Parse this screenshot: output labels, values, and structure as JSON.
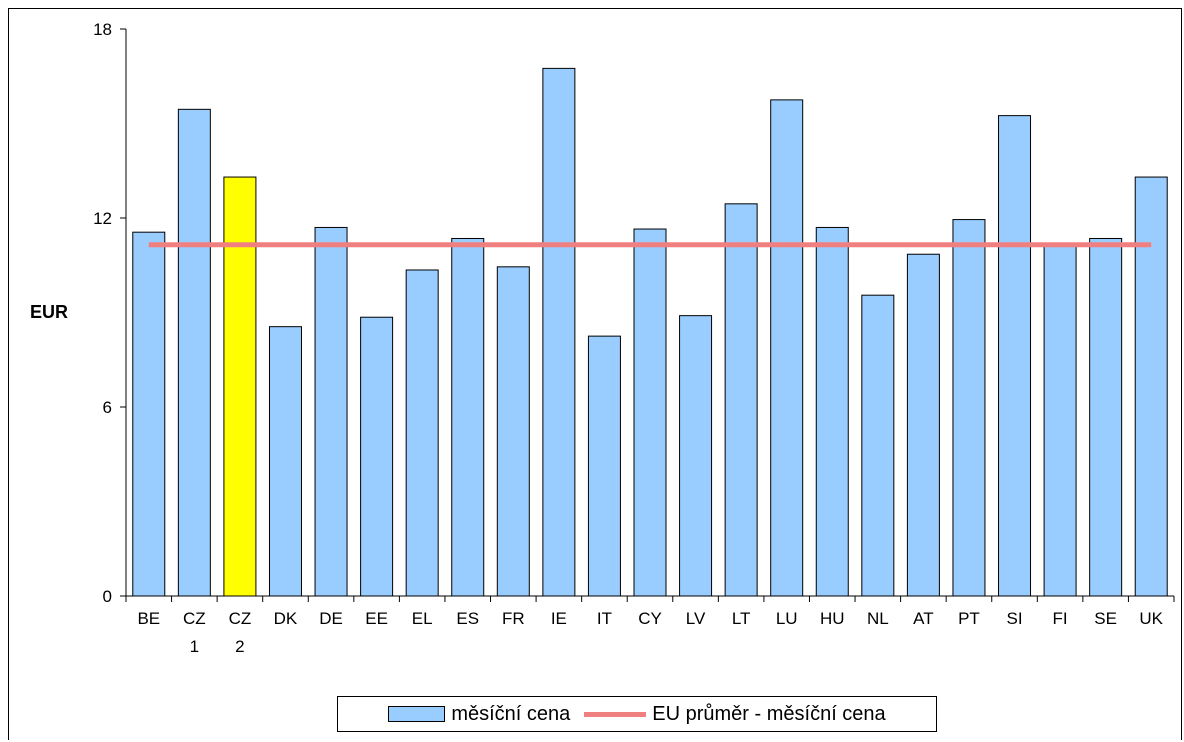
{
  "chart_data": {
    "type": "bar",
    "ylabel": "EUR",
    "ylim": [
      0,
      18
    ],
    "yticks": [
      0,
      6,
      12,
      18
    ],
    "categories": [
      [
        "BE"
      ],
      [
        "CZ",
        "1"
      ],
      [
        "CZ",
        "2"
      ],
      [
        "DK"
      ],
      [
        "DE"
      ],
      [
        "EE"
      ],
      [
        "EL"
      ],
      [
        "ES"
      ],
      [
        "FR"
      ],
      [
        "IE"
      ],
      [
        "IT"
      ],
      [
        "CY"
      ],
      [
        "LV"
      ],
      [
        "LT"
      ],
      [
        "LU"
      ],
      [
        "HU"
      ],
      [
        "NL"
      ],
      [
        "AT"
      ],
      [
        "PT"
      ],
      [
        "SI"
      ],
      [
        "FI"
      ],
      [
        "SE"
      ],
      [
        "UK"
      ]
    ],
    "series": [
      {
        "name": "měsíční cena",
        "color": "#99ccff",
        "values": [
          11.55,
          15.45,
          13.3,
          8.55,
          11.7,
          8.85,
          10.35,
          11.35,
          10.45,
          16.75,
          8.25,
          11.65,
          8.9,
          12.45,
          15.75,
          11.7,
          9.55,
          10.85,
          11.95,
          15.25,
          11.15,
          11.35,
          13.3
        ],
        "highlight": {
          "index": 2,
          "color": "#ffff00"
        }
      },
      {
        "name": "EU průměr - měsíční cena",
        "type": "line",
        "color": "#f08080",
        "value": 11.15
      }
    ],
    "legend_position": "bottom"
  }
}
